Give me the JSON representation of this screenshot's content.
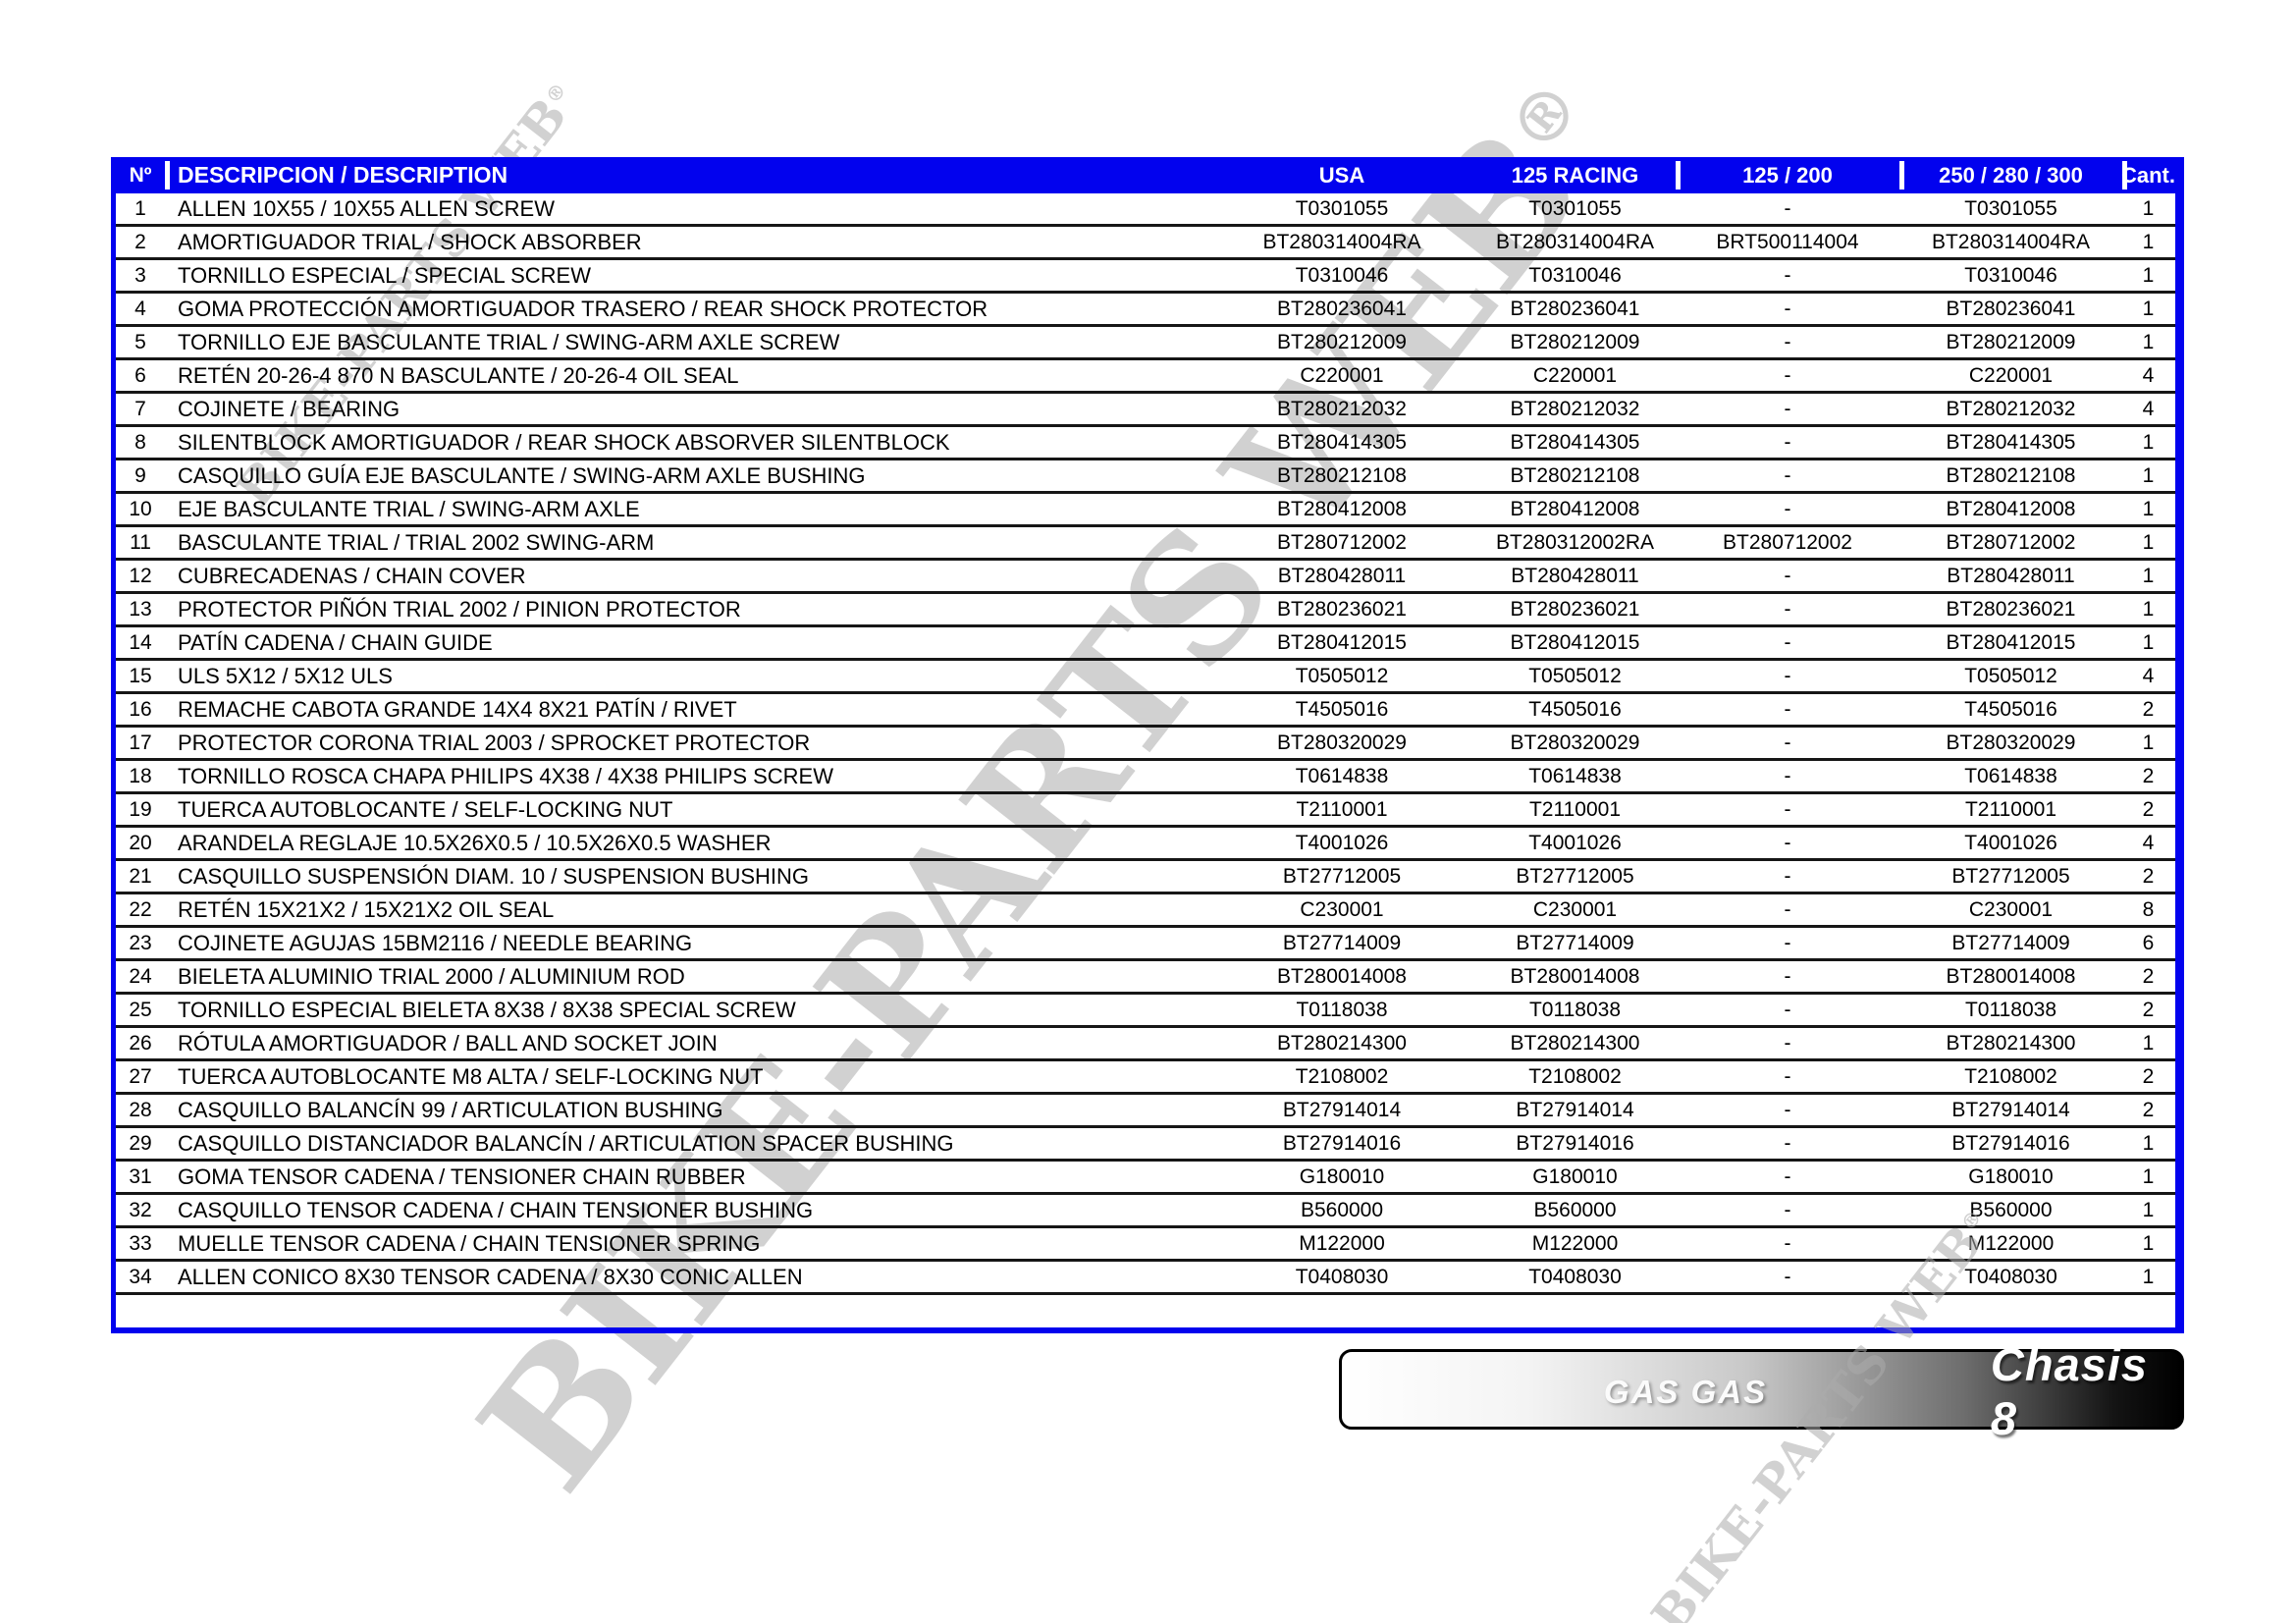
{
  "watermark": {
    "text": "BIKE-PARTS WEB",
    "reg": "®"
  },
  "banner": {
    "brand": "GAS GAS",
    "label": "Chasis 8"
  },
  "colors": {
    "header_blue": "#0202ee",
    "row_line": "#161616",
    "watermark_gray": "#acacac"
  },
  "table": {
    "header": {
      "num": "Nº",
      "description": "DESCRIPCION / DESCRIPTION",
      "usa": "USA",
      "racing": "125 RACING",
      "m125": "125 / 200",
      "m250": "250 / 280 / 300",
      "cant": "Cant."
    },
    "rows": [
      {
        "num": "1",
        "desc": "ALLEN 10X55 / 10X55 ALLEN SCREW",
        "usa": "T0301055",
        "racing": "T0301055",
        "m125": "-",
        "m250": "T0301055",
        "cant": "1"
      },
      {
        "num": "2",
        "desc": "AMORTIGUADOR TRIAL / SHOCK ABSORBER",
        "usa": "BT280314004RA",
        "racing": "BT280314004RA",
        "m125": "BRT500114004",
        "m250": "BT280314004RA",
        "cant": "1"
      },
      {
        "num": "3",
        "desc": "TORNILLO ESPECIAL / SPECIAL SCREW",
        "usa": "T0310046",
        "racing": "T0310046",
        "m125": "-",
        "m250": "T0310046",
        "cant": "1"
      },
      {
        "num": "4",
        "desc": "GOMA PROTECCIÓN AMORTIGUADOR TRASERO / REAR SHOCK PROTECTOR",
        "usa": "BT280236041",
        "racing": "BT280236041",
        "m125": "-",
        "m250": "BT280236041",
        "cant": "1"
      },
      {
        "num": "5",
        "desc": "TORNILLO EJE BASCULANTE TRIAL / SWING-ARM AXLE SCREW",
        "usa": "BT280212009",
        "racing": "BT280212009",
        "m125": "-",
        "m250": "BT280212009",
        "cant": "1"
      },
      {
        "num": "6",
        "desc": "RETÉN 20-26-4 870 N BASCULANTE / 20-26-4 OIL SEAL",
        "usa": "C220001",
        "racing": "C220001",
        "m125": "-",
        "m250": "C220001",
        "cant": "4"
      },
      {
        "num": "7",
        "desc": "COJINETE / BEARING",
        "usa": "BT280212032",
        "racing": "BT280212032",
        "m125": "-",
        "m250": "BT280212032",
        "cant": "4"
      },
      {
        "num": "8",
        "desc": "SILENTBLOCK AMORTIGUADOR / REAR SHOCK ABSORVER SILENTBLOCK",
        "usa": "BT280414305",
        "racing": "BT280414305",
        "m125": "-",
        "m250": "BT280414305",
        "cant": "1"
      },
      {
        "num": "9",
        "desc": "CASQUILLO GUÍA EJE BASCULANTE / SWING-ARM AXLE BUSHING",
        "usa": "BT280212108",
        "racing": "BT280212108",
        "m125": "-",
        "m250": "BT280212108",
        "cant": "1"
      },
      {
        "num": "10",
        "desc": "EJE BASCULANTE TRIAL / SWING-ARM AXLE",
        "usa": "BT280412008",
        "racing": "BT280412008",
        "m125": "-",
        "m250": "BT280412008",
        "cant": "1"
      },
      {
        "num": "11",
        "desc": "BASCULANTE TRIAL / TRIAL 2002 SWING-ARM",
        "usa": "BT280712002",
        "racing": "BT280312002RA",
        "m125": "BT280712002",
        "m250": "BT280712002",
        "cant": "1"
      },
      {
        "num": "12",
        "desc": "CUBRECADENAS / CHAIN COVER",
        "usa": "BT280428011",
        "racing": "BT280428011",
        "m125": "-",
        "m250": "BT280428011",
        "cant": "1"
      },
      {
        "num": "13",
        "desc": "PROTECTOR PIÑÓN TRIAL 2002 / PINION PROTECTOR",
        "usa": "BT280236021",
        "racing": "BT280236021",
        "m125": "-",
        "m250": "BT280236021",
        "cant": "1"
      },
      {
        "num": "14",
        "desc": "PATÍN CADENA / CHAIN GUIDE",
        "usa": "BT280412015",
        "racing": "BT280412015",
        "m125": "-",
        "m250": "BT280412015",
        "cant": "1"
      },
      {
        "num": "15",
        "desc": "ULS 5X12 / 5X12 ULS",
        "usa": "T0505012",
        "racing": "T0505012",
        "m125": "-",
        "m250": "T0505012",
        "cant": "4"
      },
      {
        "num": "16",
        "desc": "REMACHE CABOTA GRANDE 14X4 8X21 PATÍN / RIVET",
        "usa": "T4505016",
        "racing": "T4505016",
        "m125": "-",
        "m250": "T4505016",
        "cant": "2"
      },
      {
        "num": "17",
        "desc": "PROTECTOR CORONA TRIAL 2003 / SPROCKET PROTECTOR",
        "usa": "BT280320029",
        "racing": "BT280320029",
        "m125": "-",
        "m250": "BT280320029",
        "cant": "1"
      },
      {
        "num": "18",
        "desc": "TORNILLO ROSCA CHAPA PHILIPS 4X38 / 4X38 PHILIPS SCREW",
        "usa": "T0614838",
        "racing": "T0614838",
        "m125": "-",
        "m250": "T0614838",
        "cant": "2"
      },
      {
        "num": "19",
        "desc": "TUERCA AUTOBLOCANTE / SELF-LOCKING NUT",
        "usa": "T2110001",
        "racing": "T2110001",
        "m125": "-",
        "m250": "T2110001",
        "cant": "2"
      },
      {
        "num": "20",
        "desc": "ARANDELA REGLAJE 10.5X26X0.5 / 10.5X26X0.5 WASHER",
        "usa": "T4001026",
        "racing": "T4001026",
        "m125": "-",
        "m250": "T4001026",
        "cant": "4"
      },
      {
        "num": "21",
        "desc": "CASQUILLO SUSPENSIÓN DIAM. 10 / SUSPENSION BUSHING",
        "usa": "BT27712005",
        "racing": "BT27712005",
        "m125": "-",
        "m250": "BT27712005",
        "cant": "2"
      },
      {
        "num": "22",
        "desc": "RETÉN 15X21X2 / 15X21X2 OIL SEAL",
        "usa": "C230001",
        "racing": "C230001",
        "m125": "-",
        "m250": "C230001",
        "cant": "8"
      },
      {
        "num": "23",
        "desc": "COJINETE AGUJAS 15BM2116 / NEEDLE BEARING",
        "usa": "BT27714009",
        "racing": "BT27714009",
        "m125": "-",
        "m250": "BT27714009",
        "cant": "6"
      },
      {
        "num": "24",
        "desc": "BIELETA ALUMINIO TRIAL 2000 / ALUMINIUM ROD",
        "usa": "BT280014008",
        "racing": "BT280014008",
        "m125": "-",
        "m250": "BT280014008",
        "cant": "2"
      },
      {
        "num": "25",
        "desc": "TORNILLO ESPECIAL BIELETA 8X38 / 8X38 SPECIAL SCREW",
        "usa": "T0118038",
        "racing": "T0118038",
        "m125": "-",
        "m250": "T0118038",
        "cant": "2"
      },
      {
        "num": "26",
        "desc": "RÓTULA AMORTIGUADOR / BALL AND SOCKET JOIN",
        "usa": "BT280214300",
        "racing": "BT280214300",
        "m125": "-",
        "m250": "BT280214300",
        "cant": "1"
      },
      {
        "num": "27",
        "desc": "TUERCA AUTOBLOCANTE M8 ALTA / SELF-LOCKING NUT",
        "usa": "T2108002",
        "racing": "T2108002",
        "m125": "-",
        "m250": "T2108002",
        "cant": "2"
      },
      {
        "num": "28",
        "desc": "CASQUILLO BALANCÍN 99 / ARTICULATION BUSHING",
        "usa": "BT27914014",
        "racing": "BT27914014",
        "m125": "-",
        "m250": "BT27914014",
        "cant": "2"
      },
      {
        "num": "29",
        "desc": "CASQUILLO DISTANCIADOR BALANCÍN / ARTICULATION SPACER BUSHING",
        "usa": "BT27914016",
        "racing": "BT27914016",
        "m125": "-",
        "m250": "BT27914016",
        "cant": "1"
      },
      {
        "num": "31",
        "desc": "GOMA TENSOR CADENA / TENSIONER CHAIN RUBBER",
        "usa": "G180010",
        "racing": "G180010",
        "m125": "-",
        "m250": "G180010",
        "cant": "1"
      },
      {
        "num": "32",
        "desc": "CASQUILLO TENSOR CADENA / CHAIN TENSIONER BUSHING",
        "usa": "B560000",
        "racing": "B560000",
        "m125": "-",
        "m250": "B560000",
        "cant": "1"
      },
      {
        "num": "33",
        "desc": "MUELLE TENSOR CADENA / CHAIN TENSIONER SPRING",
        "usa": "M122000",
        "racing": "M122000",
        "m125": "-",
        "m250": "M122000",
        "cant": "1"
      },
      {
        "num": "34",
        "desc": "ALLEN CONICO 8X30 TENSOR CADENA / 8X30 CONIC ALLEN",
        "usa": "T0408030",
        "racing": "T0408030",
        "m125": "-",
        "m250": "T0408030",
        "cant": "1"
      }
    ]
  }
}
